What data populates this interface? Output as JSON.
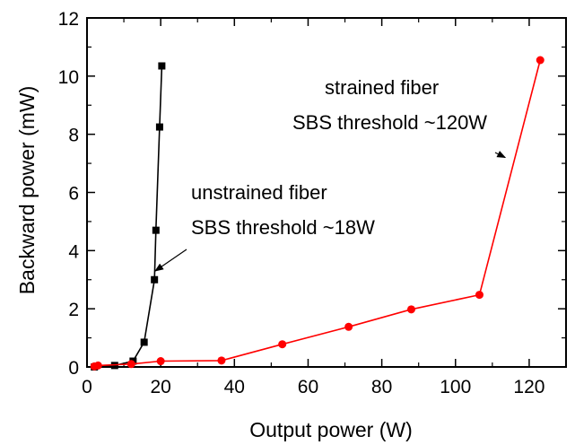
{
  "chart_data": {
    "type": "scatter",
    "xlabel": "Output power (W)",
    "ylabel": "Backward  power (mW)",
    "xlim": [
      0,
      130
    ],
    "ylim": [
      0,
      12
    ],
    "xticks": [
      0,
      20,
      40,
      60,
      80,
      100,
      120
    ],
    "yticks": [
      0,
      2,
      4,
      6,
      8,
      10,
      12
    ],
    "grid": false,
    "series": [
      {
        "color": "#000000",
        "marker": "square",
        "x": [
          2.0,
          7.5,
          12.5,
          15.5,
          18.3,
          18.7,
          19.7,
          20.3
        ],
        "y": [
          0.0,
          0.05,
          0.2,
          0.85,
          3.0,
          4.7,
          8.25,
          10.35
        ]
      },
      {
        "color": "#ff0000",
        "marker": "circle",
        "x": [
          2.0,
          3.0,
          12.0,
          20.0,
          36.5,
          53.0,
          71.0,
          88.0,
          106.5,
          123.0
        ],
        "y": [
          0.02,
          0.05,
          0.1,
          0.2,
          0.22,
          0.78,
          1.38,
          1.98,
          2.48,
          10.55
        ]
      }
    ],
    "annotations": [
      {
        "lines": [
          "unstrained fiber",
          "SBS threshold ~18W"
        ],
        "arrow_to": [
          18.5,
          3.3
        ]
      },
      {
        "lines": [
          "strained fiber",
          "SBS threshold ~120W"
        ],
        "arrow_to": [
          113.5,
          7.2
        ]
      }
    ]
  }
}
